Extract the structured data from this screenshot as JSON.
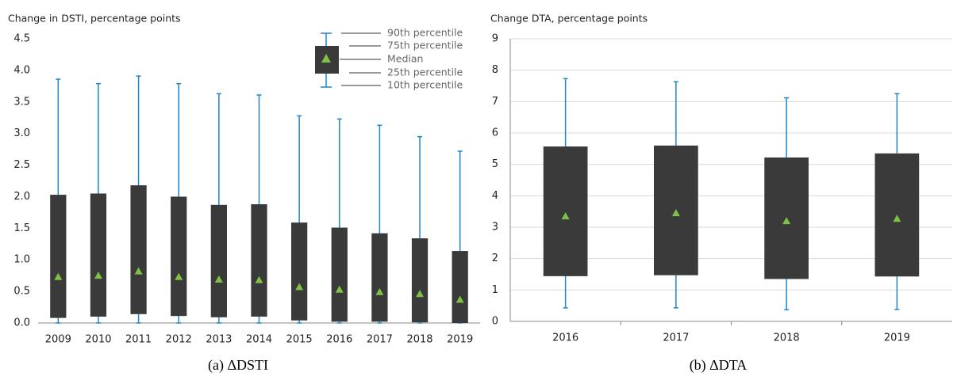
{
  "chart_data": [
    {
      "type": "box",
      "title": "Change in DSTI, percentage points",
      "caption": "(a) ΔDSTI",
      "categories": [
        "2009",
        "2010",
        "2011",
        "2012",
        "2013",
        "2014",
        "2015",
        "2016",
        "2017",
        "2018",
        "2019"
      ],
      "p10": [
        0.0,
        0.0,
        0.0,
        0.0,
        0.0,
        0.0,
        0.0,
        0.0,
        0.0,
        0.0,
        0.0
      ],
      "p25": [
        0.08,
        0.1,
        0.14,
        0.11,
        0.09,
        0.1,
        0.04,
        0.02,
        0.02,
        0.01,
        0.0
      ],
      "median": [
        0.73,
        0.75,
        0.82,
        0.73,
        0.69,
        0.68,
        0.57,
        0.53,
        0.49,
        0.46,
        0.37
      ],
      "p75": [
        2.03,
        2.05,
        2.18,
        2.0,
        1.87,
        1.88,
        1.59,
        1.51,
        1.42,
        1.34,
        1.14
      ],
      "p90": [
        3.86,
        3.79,
        3.91,
        3.79,
        3.63,
        3.61,
        3.28,
        3.23,
        3.13,
        2.95,
        2.72
      ],
      "ylim": [
        0,
        4.5
      ],
      "yticks": [
        {
          "value": 0,
          "label": "0.0"
        },
        0.5,
        {
          "value": 1,
          "label": "1.0"
        },
        1.5,
        {
          "value": 2,
          "label": "2.0"
        },
        2.5,
        {
          "value": 3,
          "label": "3.0"
        },
        3.5,
        {
          "value": 4,
          "label": "4.0"
        },
        4.5
      ],
      "grid": false,
      "box_color": "#3a3a3a",
      "whisker_color": "#1f86c8",
      "median_color": "#7dc242",
      "legend_labels": [
        "90th percentile",
        "75th percentile",
        "Median",
        "25th percentile",
        "10th percentile"
      ]
    },
    {
      "type": "box",
      "title": "Change DTA, percentage points",
      "caption": "(b) ΔDTA",
      "categories": [
        "2016",
        "2017",
        "2018",
        "2019"
      ],
      "p10": [
        0.43,
        0.43,
        0.37,
        0.38
      ],
      "p25": [
        1.44,
        1.47,
        1.35,
        1.43
      ],
      "median": [
        3.35,
        3.45,
        3.2,
        3.27
      ],
      "p75": [
        5.57,
        5.6,
        5.22,
        5.35
      ],
      "p90": [
        7.73,
        7.63,
        7.12,
        7.25
      ],
      "ylim": [
        0,
        9
      ],
      "yticks": [
        0,
        1,
        2,
        3,
        4,
        5,
        6,
        7,
        8,
        9
      ],
      "grid": true,
      "box_color": "#3a3a3a",
      "whisker_color": "#1f86c8",
      "median_color": "#7dc242"
    }
  ]
}
